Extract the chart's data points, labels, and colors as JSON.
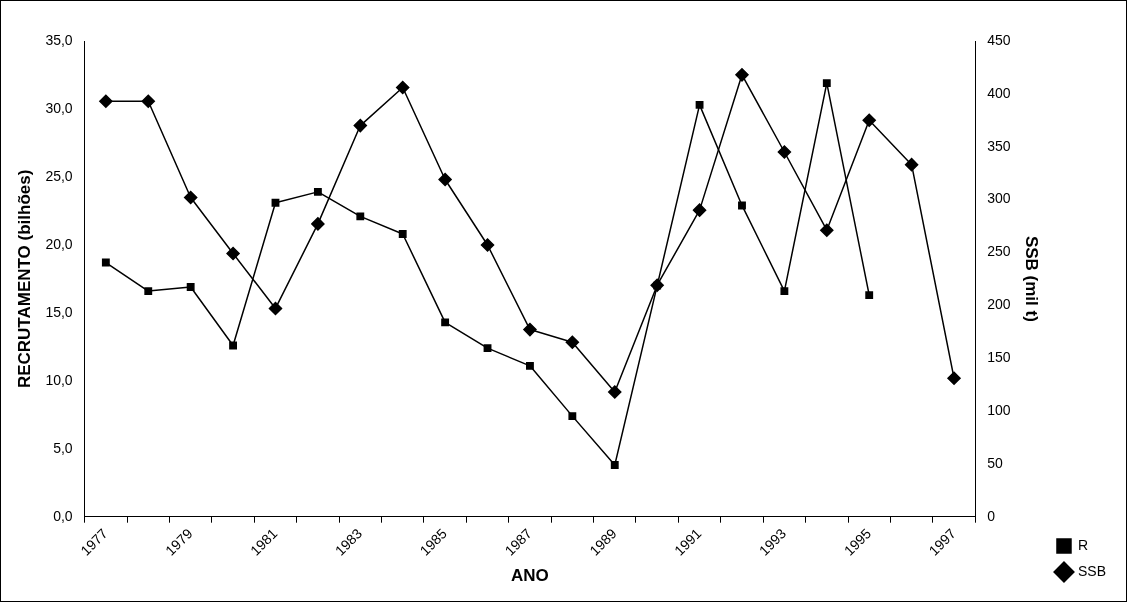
{
  "chart_data": {
    "type": "line",
    "xlabel": "ANO",
    "ylabel": "RECRUTAMENTO (bilhões)",
    "y2label": "SSB (mil t)",
    "categories": [
      "1977",
      null,
      "1979",
      null,
      "1981",
      null,
      "1983",
      null,
      "1985",
      null,
      "1987",
      null,
      "1989",
      null,
      "1991",
      null,
      "1993",
      null,
      "1995",
      null,
      "1997"
    ],
    "series": [
      {
        "name": "R",
        "color": "#000000",
        "marker": "square",
        "values": [
          18.7,
          16.6,
          16.9,
          12.6,
          23.1,
          23.9,
          22.1,
          20.8,
          14.3,
          12.4,
          11.1,
          7.4,
          3.8,
          17.0,
          30.3,
          22.9,
          16.6,
          31.9,
          16.3,
          null,
          null
        ]
      },
      {
        "name": "SSB",
        "color": "#000000",
        "marker": "diamond",
        "axis": "y2",
        "values": [
          393,
          393,
          302,
          249,
          197,
          277,
          370,
          406,
          319,
          257,
          177,
          165,
          118,
          219,
          290,
          418,
          345,
          271,
          375,
          333,
          131
        ]
      }
    ],
    "ylim": [
      0,
      35
    ],
    "yticks": [
      {
        "value": 0,
        "label": "0,0"
      },
      {
        "value": 5,
        "label": "5,0"
      },
      {
        "value": 10,
        "label": "10,0"
      },
      {
        "value": 15,
        "label": "15,0"
      },
      {
        "value": 20,
        "label": "20,0"
      },
      {
        "value": 25,
        "label": "25,0"
      },
      {
        "value": 30,
        "label": "30,0"
      },
      {
        "value": 35,
        "label": "35,0"
      }
    ],
    "y2lim": [
      0,
      450
    ],
    "y2ticks": [
      0,
      50,
      100,
      150,
      200,
      250,
      300,
      350,
      400,
      450
    ],
    "legend": "right",
    "grid": false,
    "line_style": "solid"
  }
}
